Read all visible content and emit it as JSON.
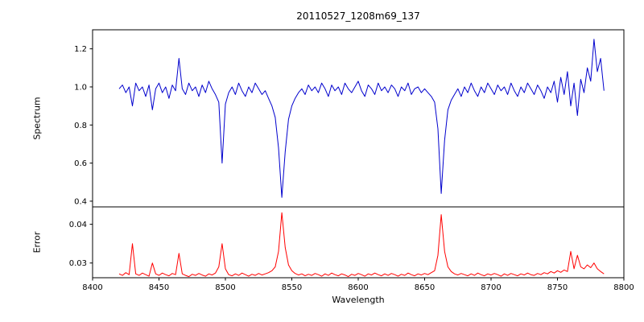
{
  "figure": {
    "background": "#ffffff"
  },
  "chart_data": [
    {
      "type": "line",
      "title": "20110527_1208m69_137",
      "ylabel": "Spectrum",
      "color": "#0000cd",
      "xlim": [
        8400,
        8800
      ],
      "ylim": [
        0.37,
        1.3
      ],
      "yticks": [
        0.4,
        0.6,
        0.8,
        1.0,
        1.2
      ],
      "ytick_labels": [
        "0.4",
        "0.6",
        "0.8",
        "1.0",
        "1.2"
      ],
      "grid": false,
      "x_start": 8420,
      "x_step": 2.5,
      "values": [
        0.99,
        1.01,
        0.97,
        1.0,
        0.9,
        1.02,
        0.98,
        1.0,
        0.95,
        1.01,
        0.88,
        0.99,
        1.02,
        0.97,
        1.0,
        0.94,
        1.01,
        0.98,
        1.15,
        0.99,
        0.96,
        1.02,
        0.98,
        1.0,
        0.95,
        1.01,
        0.97,
        1.03,
        0.99,
        0.96,
        0.92,
        0.6,
        0.91,
        0.97,
        1.0,
        0.96,
        1.02,
        0.98,
        0.95,
        1.0,
        0.97,
        1.02,
        0.99,
        0.96,
        0.98,
        0.94,
        0.9,
        0.84,
        0.68,
        0.42,
        0.66,
        0.83,
        0.9,
        0.94,
        0.97,
        0.99,
        0.96,
        1.01,
        0.98,
        1.0,
        0.97,
        1.02,
        0.99,
        0.95,
        1.01,
        0.98,
        1.0,
        0.96,
        1.02,
        0.99,
        0.97,
        1.0,
        1.03,
        0.98,
        0.95,
        1.01,
        0.99,
        0.96,
        1.02,
        0.98,
        1.0,
        0.97,
        1.01,
        0.99,
        0.95,
        1.0,
        0.98,
        1.02,
        0.96,
        0.99,
        1.0,
        0.97,
        0.99,
        0.97,
        0.95,
        0.92,
        0.78,
        0.44,
        0.72,
        0.88,
        0.93,
        0.96,
        0.99,
        0.95,
        1.0,
        0.97,
        1.02,
        0.98,
        0.95,
        1.0,
        0.97,
        1.02,
        0.99,
        0.96,
        1.01,
        0.98,
        1.0,
        0.96,
        1.02,
        0.98,
        0.95,
        1.0,
        0.97,
        1.02,
        0.99,
        0.96,
        1.01,
        0.98,
        0.94,
        1.0,
        0.97,
        1.03,
        0.92,
        1.05,
        0.96,
        1.08,
        0.9,
        1.02,
        0.85,
        1.04,
        0.97,
        1.1,
        1.03,
        1.25,
        1.08,
        1.15,
        0.98
      ]
    },
    {
      "type": "line",
      "ylabel": "Error",
      "xlabel": "Wavelength",
      "color": "#ff0000",
      "xlim": [
        8400,
        8800
      ],
      "ylim": [
        0.0262,
        0.0445
      ],
      "yticks": [
        0.03,
        0.04
      ],
      "ytick_labels": [
        "0.03",
        "0.04"
      ],
      "xticks": [
        8400,
        8450,
        8500,
        8550,
        8600,
        8650,
        8700,
        8750,
        8800
      ],
      "xtick_labels": [
        "8400",
        "8450",
        "8500",
        "8550",
        "8600",
        "8650",
        "8700",
        "8750",
        "8800"
      ],
      "grid": false,
      "x_start": 8420,
      "x_step": 2.5,
      "values": [
        0.0272,
        0.0268,
        0.0275,
        0.027,
        0.035,
        0.0272,
        0.0268,
        0.0274,
        0.027,
        0.0266,
        0.03,
        0.0272,
        0.0268,
        0.0274,
        0.027,
        0.0267,
        0.0273,
        0.027,
        0.0325,
        0.0272,
        0.0268,
        0.0265,
        0.0271,
        0.0268,
        0.0273,
        0.0269,
        0.0266,
        0.0272,
        0.0269,
        0.0274,
        0.029,
        0.035,
        0.0285,
        0.027,
        0.0267,
        0.0272,
        0.0268,
        0.0274,
        0.027,
        0.0266,
        0.0271,
        0.0268,
        0.0273,
        0.0269,
        0.0272,
        0.0275,
        0.028,
        0.029,
        0.033,
        0.043,
        0.034,
        0.0295,
        0.028,
        0.0273,
        0.0269,
        0.0272,
        0.0267,
        0.0271,
        0.0268,
        0.0273,
        0.027,
        0.0266,
        0.0272,
        0.0268,
        0.0274,
        0.027,
        0.0267,
        0.0272,
        0.0269,
        0.0265,
        0.0271,
        0.0268,
        0.0273,
        0.027,
        0.0266,
        0.0272,
        0.0269,
        0.0274,
        0.027,
        0.0267,
        0.0272,
        0.0268,
        0.0273,
        0.027,
        0.0266,
        0.0271,
        0.0268,
        0.0274,
        0.027,
        0.0267,
        0.0272,
        0.0269,
        0.0273,
        0.027,
        0.0275,
        0.028,
        0.032,
        0.0425,
        0.033,
        0.029,
        0.0278,
        0.0272,
        0.0269,
        0.0273,
        0.027,
        0.0267,
        0.0272,
        0.0268,
        0.0274,
        0.027,
        0.0267,
        0.0272,
        0.0269,
        0.0273,
        0.027,
        0.0266,
        0.0272,
        0.0268,
        0.0273,
        0.027,
        0.0267,
        0.0272,
        0.0269,
        0.0274,
        0.027,
        0.0268,
        0.0273,
        0.027,
        0.0275,
        0.0272,
        0.0278,
        0.0274,
        0.028,
        0.0276,
        0.0282,
        0.0278,
        0.033,
        0.0285,
        0.032,
        0.029,
        0.0285,
        0.0295,
        0.0288,
        0.03,
        0.0285,
        0.0278,
        0.0272
      ]
    }
  ]
}
